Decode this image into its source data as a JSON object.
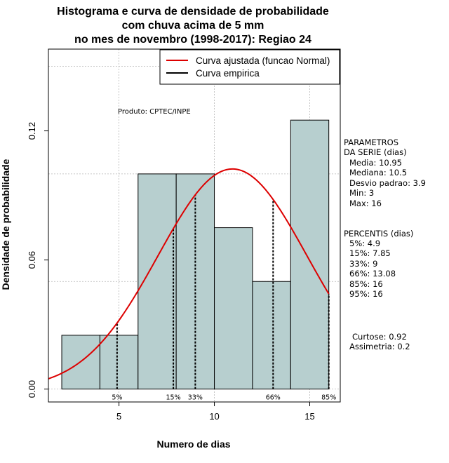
{
  "chart_data": {
    "type": "bar",
    "title_lines": [
      "Histograma e curva de densidade de probabilidade",
      "com chuva acima de 5 mm",
      "no mes de novembro (1998-2017): Regiao 24"
    ],
    "xlabel": "Numero de dias",
    "ylabel": "Densidade de probabilidade",
    "xlim": [
      1.3,
      16.6
    ],
    "ylim": [
      -0.006,
      0.158
    ],
    "x_ticks": [
      5,
      10,
      15
    ],
    "x_tick_labels": [
      "5",
      "10",
      "15"
    ],
    "y_ticks": [
      0.0,
      0.06,
      0.12
    ],
    "y_tick_labels": [
      "0.00",
      "0.06",
      "0.12"
    ],
    "bins": [
      {
        "x0": 2,
        "x1": 4,
        "density": 0.025
      },
      {
        "x0": 4,
        "x1": 6,
        "density": 0.025
      },
      {
        "x0": 6,
        "x1": 8,
        "density": 0.1
      },
      {
        "x0": 8,
        "x1": 10,
        "density": 0.1
      },
      {
        "x0": 10,
        "x1": 12,
        "density": 0.075
      },
      {
        "x0": 12,
        "x1": 14,
        "density": 0.05
      },
      {
        "x0": 14,
        "x1": 16,
        "density": 0.125
      }
    ],
    "bar_color": "#b7cfcf",
    "fitted_curve": {
      "name": "Curva ajustada (funcao Normal)",
      "mean": 10.95,
      "sd": 3.9,
      "color": "#dd0000"
    },
    "empirical_curve": {
      "name": "Curva empirica",
      "color": "#000000"
    },
    "legend_position": "top-right",
    "grid": true,
    "percentile_lines": [
      {
        "label": "5%",
        "x": 4.9
      },
      {
        "label": "15%",
        "x": 7.85
      },
      {
        "label": "33%",
        "x": 9
      },
      {
        "label": "66%",
        "x": 13.08
      },
      {
        "label": "85%",
        "x": 16
      }
    ]
  },
  "annotations": {
    "product": "Produto: CPTEC/INPE",
    "parametros": [
      "PARAMETROS",
      "DA SERIE (dias)",
      "Media: 10.95",
      "Mediana: 10.5",
      "Desvio padrao: 3.9",
      "Min: 3",
      "Max: 16"
    ],
    "percentis": [
      "PERCENTIS (dias)",
      "5%: 4.9",
      "15%: 7.85",
      "33%: 9",
      "66%: 13.08",
      "85%: 16",
      "95%: 16"
    ],
    "shape": [
      "Curtose: 0.92",
      "Assimetria: 0.2"
    ]
  }
}
